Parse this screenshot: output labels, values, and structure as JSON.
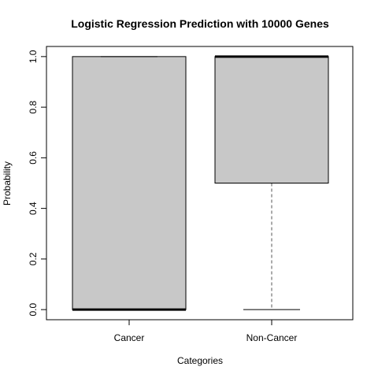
{
  "chart_data": {
    "type": "boxplot",
    "title": "Logistic Regression Prediction with 10000 Genes",
    "xlabel": "Categories",
    "ylabel": "Probability",
    "ylim": [
      -0.04,
      1.04
    ],
    "yticks": [
      0.0,
      0.2,
      0.4,
      0.6,
      0.8,
      1.0
    ],
    "ytick_labels": [
      "0.0",
      "0.2",
      "0.4",
      "0.6",
      "0.8",
      "1.0"
    ],
    "grid": false,
    "categories": [
      "Cancer",
      "Non-Cancer"
    ],
    "boxes": [
      {
        "category": "Cancer",
        "whisker_low": 0.0,
        "q1": 0.0,
        "median": 0.0,
        "q3": 1.0,
        "whisker_high": 1.0
      },
      {
        "category": "Non-Cancer",
        "whisker_low": 0.0,
        "q1": 0.5,
        "median": 1.0,
        "q3": 1.0,
        "whisker_high": 1.0
      }
    ],
    "box_fill": "#c8c8c8",
    "line_color": "#000000",
    "whisker_color": "#555555"
  }
}
